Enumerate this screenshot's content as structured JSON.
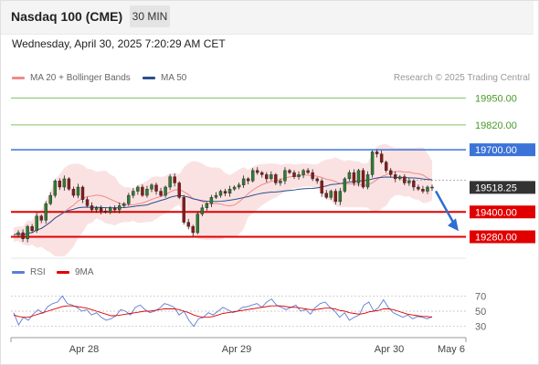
{
  "header": {
    "title": "Nasdaq 100 (CME)",
    "timeframe": "30 MIN",
    "datetime": "Wednesday, April 30, 2025 7:20:29 AM CET"
  },
  "legend": {
    "items": [
      {
        "label": "MA 20 + Bollinger Bands",
        "color": "#f08a8a"
      },
      {
        "label": "MA 50",
        "color": "#2b4f8f"
      }
    ],
    "credit": "Research © 2025 Trading Central"
  },
  "rsi_legend": {
    "items": [
      {
        "label": "RSI",
        "color": "#5b7fd6"
      },
      {
        "label": "9MA",
        "color": "#e00000"
      }
    ]
  },
  "colors": {
    "up": "#2e7d32",
    "down": "#8b1a1a",
    "band": "#fbe2e2",
    "ma20": "#f08a8a",
    "ma50": "#2b4f8f",
    "resistance": "#7cc36a",
    "pivot": "#3b73d8",
    "support": "#e00000",
    "arrow": "#2e6fd0",
    "last_price_bg": "#333333"
  },
  "chart_data": [
    {
      "type": "candlestick",
      "title": "Nasdaq 100 (CME)",
      "timeframe": "30 MIN",
      "x_ticks": [
        "Apr 28",
        "Apr 29",
        "Apr 30",
        "May 6"
      ],
      "y_ticks": [],
      "last_price": 19518.25,
      "levels": [
        {
          "value": 19950.0,
          "label": "19950.00",
          "role": "resistance"
        },
        {
          "value": 19820.0,
          "label": "19820.00",
          "role": "resistance"
        },
        {
          "value": 19700.0,
          "label": "19700.00",
          "role": "pivot"
        },
        {
          "value": 19400.0,
          "label": "19400.00",
          "role": "support"
        },
        {
          "value": 19280.0,
          "label": "19280.00",
          "role": "support"
        }
      ],
      "ylim": [
        19225,
        20000
      ],
      "price_path": [
        19290,
        19300,
        19270,
        19330,
        19310,
        19380,
        19360,
        19440,
        19480,
        19550,
        19520,
        19560,
        19510,
        19480,
        19520,
        19460,
        19430,
        19410,
        19420,
        19405,
        19400,
        19420,
        19410,
        19430,
        19440,
        19480,
        19500,
        19520,
        19480,
        19510,
        19530,
        19500,
        19480,
        19520,
        19570,
        19540,
        19470,
        19350,
        19330,
        19300,
        19390,
        19420,
        19440,
        19470,
        19480,
        19500,
        19490,
        19510,
        19520,
        19530,
        19560,
        19550,
        19600,
        19590,
        19580,
        19560,
        19580,
        19540,
        19550,
        19600,
        19590,
        19570,
        19580,
        19600,
        19590,
        19560,
        19550,
        19490,
        19470,
        19500,
        19450,
        19500,
        19560,
        19590,
        19540,
        19600,
        19520,
        19580,
        19690,
        19680,
        19640,
        19600,
        19580,
        19560,
        19570,
        19540,
        19550,
        19520,
        19510,
        19500,
        19520,
        19518.25
      ],
      "forecast_arrow": {
        "from": 19518.25,
        "to": 19290
      },
      "series": [
        {
          "name": "MA 20 + Bollinger Bands"
        },
        {
          "name": "MA 50"
        }
      ]
    },
    {
      "type": "line",
      "x_ticks": [
        "Apr 28",
        "Apr 29",
        "Apr 30",
        "May 6"
      ],
      "y_ticks": [
        30,
        50,
        70
      ],
      "ylim": [
        20,
        80
      ],
      "series": [
        {
          "name": "RSI",
          "values": [
            48,
            32,
            42,
            38,
            46,
            52,
            47,
            56,
            60,
            62,
            70,
            60,
            58,
            55,
            50,
            52,
            45,
            48,
            42,
            38,
            40,
            44,
            52,
            50,
            45,
            55,
            58,
            52,
            48,
            50,
            54,
            60,
            58,
            55,
            45,
            50,
            38,
            30,
            40,
            42,
            48,
            45,
            50,
            55,
            52,
            48,
            50,
            55,
            56,
            58,
            60,
            55,
            62,
            66,
            58,
            55,
            52,
            55,
            58,
            50,
            52,
            46,
            55,
            60,
            62,
            55,
            50,
            42,
            48,
            38,
            42,
            45,
            58,
            62,
            50,
            55,
            65,
            55,
            48,
            45,
            42,
            45,
            40,
            43,
            42,
            40,
            43
          ]
        },
        {
          "name": "9MA",
          "values": [
            45,
            43,
            42,
            42,
            44,
            46,
            48,
            50,
            52,
            54,
            56,
            57,
            57,
            56,
            55,
            54,
            52,
            50,
            48,
            46,
            44,
            44,
            45,
            46,
            47,
            48,
            49,
            50,
            50,
            51,
            52,
            53,
            53,
            53,
            52,
            50,
            48,
            45,
            43,
            42,
            42,
            43,
            45,
            47,
            48,
            49,
            50,
            51,
            52,
            53,
            54,
            55,
            56,
            57,
            57,
            57,
            56,
            55,
            55,
            54,
            53,
            52,
            52,
            53,
            54,
            54,
            53,
            51,
            50,
            48,
            47,
            46,
            47,
            49,
            50,
            51,
            53,
            53,
            52,
            50,
            48,
            46,
            45,
            44,
            43,
            43,
            42
          ]
        }
      ]
    }
  ]
}
